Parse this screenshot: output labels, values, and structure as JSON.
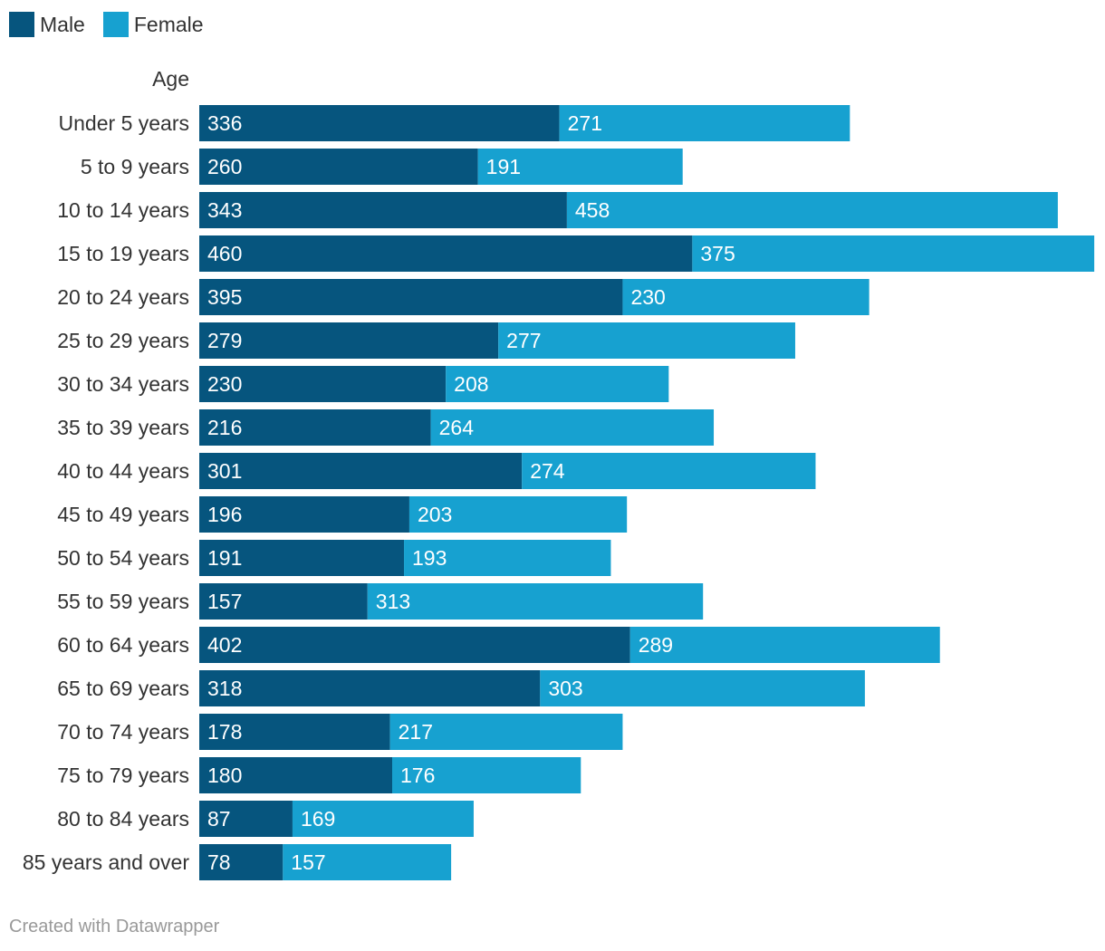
{
  "legend": [
    {
      "label": "Male",
      "color": "#06557e"
    },
    {
      "label": "Female",
      "color": "#17a1d0"
    }
  ],
  "footer": "Created with Datawrapper",
  "chart_data": {
    "type": "bar",
    "orientation": "horizontal",
    "stacked": true,
    "category_axis_title": "Age",
    "categories": [
      "Under 5 years",
      "5 to 9 years",
      "10 to 14 years",
      "15 to 19 years",
      "20 to 24 years",
      "25 to 29 years",
      "30 to 34 years",
      "35 to 39 years",
      "40 to 44 years",
      "45 to 49 years",
      "50 to 54 years",
      "55 to 59 years",
      "60 to 64 years",
      "65 to 69 years",
      "70 to 74 years",
      "75 to 79 years",
      "80 to 84 years",
      "85 years and over"
    ],
    "series": [
      {
        "name": "Male",
        "color": "#06557e",
        "values": [
          336,
          260,
          343,
          460,
          395,
          279,
          230,
          216,
          301,
          196,
          191,
          157,
          402,
          318,
          178,
          180,
          87,
          78
        ]
      },
      {
        "name": "Female",
        "color": "#17a1d0",
        "values": [
          271,
          191,
          458,
          375,
          230,
          277,
          208,
          264,
          274,
          203,
          193,
          313,
          289,
          303,
          217,
          176,
          169,
          157
        ]
      }
    ],
    "data_labels": true,
    "grid": false,
    "legend_position": "top-left"
  }
}
